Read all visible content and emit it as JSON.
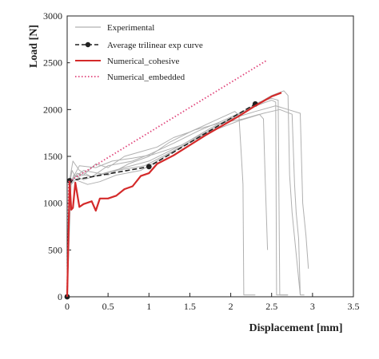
{
  "chart_data": {
    "type": "line",
    "title": "",
    "xlabel": "Displacement [mm]",
    "ylabel": "Load [N]",
    "xlim": [
      0,
      3.5
    ],
    "ylim": [
      0,
      3000
    ],
    "x_ticks": [
      0,
      0.5,
      1,
      1.5,
      2,
      2.5,
      3,
      3.5
    ],
    "x_tick_labels": [
      "0",
      "0.5",
      "1",
      "1.5",
      "2",
      "2.5",
      "3",
      "3.5"
    ],
    "y_ticks": [
      0,
      500,
      1000,
      1500,
      2000,
      2500,
      3000
    ],
    "y_tick_labels": [
      "0",
      "500",
      "1000",
      "1500",
      "2000",
      "2500",
      "3000"
    ],
    "grid": false,
    "legend_position": "top-left",
    "series": [
      {
        "name": "Experimental",
        "color": "#b0b0b0",
        "style": "solid",
        "samples": [
          {
            "x": [
              0,
              0.03,
              0.06,
              0.1,
              0.2,
              0.35,
              0.5,
              0.7,
              0.9,
              1.1,
              1.3,
              1.5,
              1.7,
              1.9,
              2.05,
              2.1,
              2.13,
              2.15,
              2.16,
              2.3
            ],
            "y": [
              0,
              1200,
              1350,
              1280,
              1300,
              1420,
              1380,
              1500,
              1550,
              1600,
              1700,
              1760,
              1840,
              1920,
              1980,
              1940,
              1500,
              1200,
              20,
              20
            ]
          },
          {
            "x": [
              0,
              0.03,
              0.07,
              0.15,
              0.3,
              0.5,
              0.8,
              1.0,
              1.3,
              1.6,
              1.9,
              2.2,
              2.4,
              2.5,
              2.55,
              2.56,
              2.7
            ],
            "y": [
              0,
              1250,
              1450,
              1350,
              1280,
              1400,
              1450,
              1520,
              1640,
              1770,
              1880,
              2000,
              2070,
              2100,
              2080,
              20,
              20
            ]
          },
          {
            "x": [
              0,
              0.03,
              0.1,
              0.25,
              0.4,
              0.6,
              0.9,
              1.2,
              1.5,
              1.8,
              2.1,
              2.4,
              2.6,
              2.75,
              2.78,
              2.8,
              2.83,
              2.85,
              2.9
            ],
            "y": [
              0,
              1180,
              1250,
              1200,
              1230,
              1300,
              1350,
              1500,
              1650,
              1780,
              1880,
              1960,
              2000,
              1950,
              1200,
              900,
              620,
              20,
              20
            ]
          },
          {
            "x": [
              0,
              0.04,
              0.12,
              0.3,
              0.6,
              0.95,
              1.3,
              1.6,
              2.0,
              2.3,
              2.5,
              2.65,
              2.7,
              2.72,
              2.75,
              2.85
            ],
            "y": [
              0,
              1200,
              1320,
              1280,
              1350,
              1400,
              1560,
              1700,
              1880,
              2050,
              2150,
              2200,
              2150,
              1300,
              900,
              20
            ]
          },
          {
            "x": [
              0,
              0.03,
              0.08,
              0.2,
              0.45,
              0.7,
              1.0,
              1.35,
              1.7,
              2.0,
              2.3,
              2.55,
              2.7,
              2.85,
              2.88,
              2.92,
              2.95
            ],
            "y": [
              0,
              1150,
              1300,
              1250,
              1320,
              1380,
              1450,
              1600,
              1760,
              1900,
              1980,
              2040,
              2000,
              1960,
              1000,
              650,
              300
            ]
          },
          {
            "x": [
              0,
              0.04,
              0.15,
              0.35,
              0.55,
              0.8,
              1.05,
              1.4,
              1.75,
              2.1,
              2.35,
              2.5,
              2.58,
              2.6,
              2.7
            ],
            "y": [
              0,
              1220,
              1400,
              1380,
              1450,
              1480,
              1520,
              1620,
              1800,
              1950,
              2080,
              2120,
              2100,
              20,
              20
            ]
          },
          {
            "x": [
              0,
              0.05,
              0.2,
              0.5,
              0.75,
              1.0,
              1.25,
              1.55,
              1.85,
              2.15,
              2.35,
              2.4,
              2.42,
              2.45
            ],
            "y": [
              0,
              1250,
              1350,
              1300,
              1420,
              1500,
              1650,
              1780,
              1850,
              1900,
              1950,
              1900,
              1300,
              500
            ]
          }
        ]
      },
      {
        "name": "Average trilinear exp curve",
        "color": "#222222",
        "style": "dashed-markers",
        "x": [
          0,
          0.03,
          1.0,
          2.3
        ],
        "y": [
          0,
          1240,
          1390,
          2060
        ]
      },
      {
        "name": "Numerical_cohesive",
        "color": "#d42a2a",
        "style": "solid-thick",
        "x": [
          0,
          0.03,
          0.05,
          0.07,
          0.1,
          0.15,
          0.2,
          0.3,
          0.35,
          0.4,
          0.5,
          0.6,
          0.7,
          0.8,
          0.9,
          1.0,
          1.1,
          1.3,
          1.5,
          1.7,
          1.9,
          2.1,
          2.3,
          2.5,
          2.62
        ],
        "y": [
          0,
          1230,
          930,
          950,
          1220,
          960,
          990,
          1020,
          920,
          1050,
          1050,
          1080,
          1150,
          1180,
          1290,
          1320,
          1420,
          1510,
          1620,
          1730,
          1830,
          1930,
          2040,
          2140,
          2180
        ]
      },
      {
        "name": "Numerical_embedded",
        "color": "#e0447a",
        "style": "dotted",
        "x": [
          0,
          0.02,
          2.45
        ],
        "y": [
          0,
          1230,
          2530
        ]
      }
    ]
  }
}
